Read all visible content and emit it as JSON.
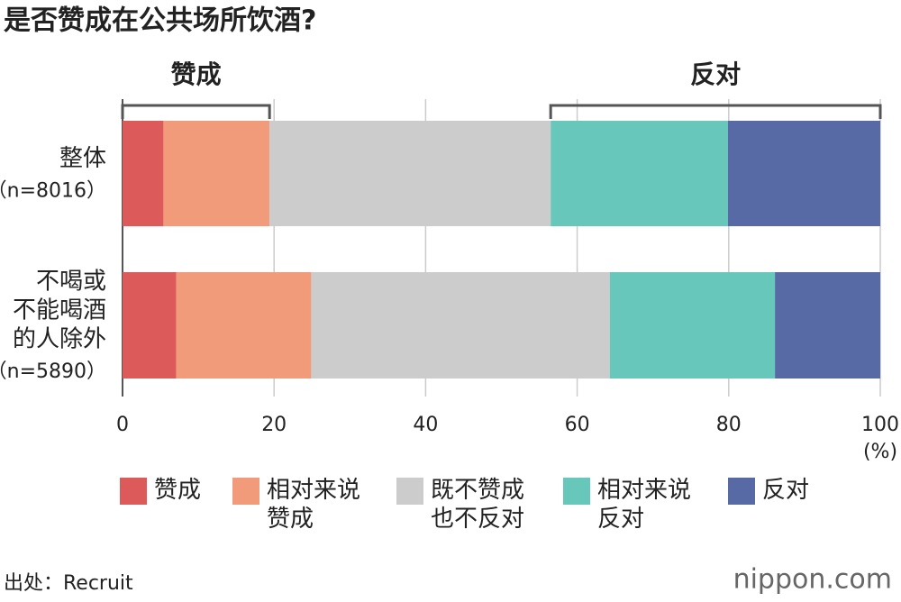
{
  "chart_data": {
    "type": "stacked_barh",
    "title": "是否赞成在公共场所饮酒?",
    "categories": [
      [
        "整体",
        "（n=8016）"
      ],
      [
        "不喝或",
        "不能喝酒",
        "的人除外",
        "（n=5890）"
      ]
    ],
    "series": [
      {
        "name": "赞成",
        "color": "#dc5a5a",
        "values": [
          5.4,
          7.1
        ]
      },
      {
        "name": "相对来说赞成",
        "color": "#f29b7b",
        "values": [
          14.0,
          17.8
        ]
      },
      {
        "name": "既不赞成也不反对",
        "color": "#cccccc",
        "values": [
          37.1,
          39.4
        ]
      },
      {
        "name": "相对来说反对",
        "color": "#68c7bb",
        "values": [
          23.4,
          21.8
        ]
      },
      {
        "name": "反对",
        "color": "#576aa6",
        "values": [
          20.1,
          13.9
        ]
      }
    ],
    "xlim": [
      0,
      100
    ],
    "xticks": [
      0,
      20,
      40,
      60,
      80,
      100
    ],
    "xlabel": "(%)",
    "grid": true,
    "annotations": [
      {
        "text": "赞成"
      },
      {
        "text": "反对"
      }
    ],
    "source": "出处：Recruit",
    "logo": "nippon.com"
  }
}
